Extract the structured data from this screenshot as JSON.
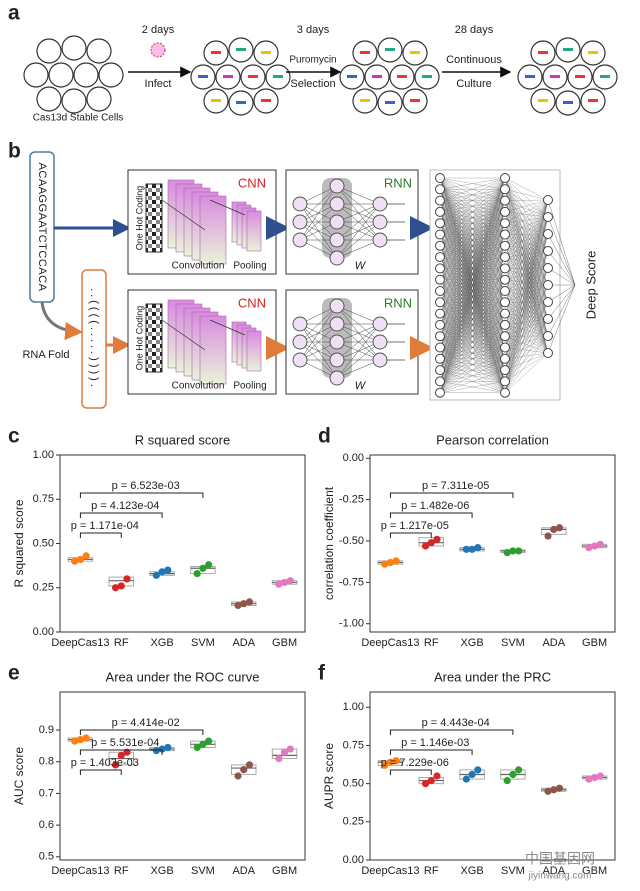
{
  "panel_a": {
    "letter": "a",
    "start": "Cas13d Stable Cells",
    "steps": [
      {
        "time": "2 days",
        "action": [
          "Infect"
        ]
      },
      {
        "time": "3 days",
        "action": [
          "Puromycin",
          "Selection"
        ]
      },
      {
        "time": "28 days",
        "action": [
          "Continuous",
          "Culture"
        ]
      }
    ]
  },
  "panel_b": {
    "letter": "b",
    "sequence": "ACAAGGAATCTCCACA",
    "structure": "..((((.....)))).",
    "fold_label": "RNA Fold",
    "output": "Deep Score",
    "branches": [
      {
        "encoding": "One Hot Coding",
        "cnn": "CNN",
        "convolution": "Convolution",
        "pooling": "Pooling",
        "rnn": "RNN",
        "weight": "W"
      },
      {
        "encoding": "One Hot Coding",
        "cnn": "CNN",
        "convolution": "Convolution",
        "pooling": "Pooling",
        "rnn": "RNN",
        "weight": "W"
      }
    ]
  },
  "chart_data": [
    {
      "type": "box",
      "label": "c",
      "title": "R squared score",
      "ylabel": "R squared score",
      "categories": [
        "DeepCas13",
        "RF",
        "XGB",
        "SVM",
        "ADA",
        "GBM"
      ],
      "ylim": [
        0,
        1
      ],
      "yticks": [
        {
          "value": 0,
          "label": "0.00"
        },
        {
          "value": 0.25,
          "label": "0.25"
        },
        {
          "value": 0.5,
          "label": "0.50"
        },
        {
          "value": 0.75,
          "label": "0.75"
        },
        {
          "value": 1,
          "label": "1.00"
        }
      ],
      "annotations": [
        "p = 1.171e-04",
        "p = 4.123e-04",
        "p = 6.523e-03"
      ],
      "boxes": [
        {
          "color": "#ff7f0e",
          "q1": 0.4,
          "median": 0.41,
          "q3": 0.42,
          "points": [
            0.4,
            0.41,
            0.43
          ]
        },
        {
          "color": "#d62728",
          "q1": 0.26,
          "median": 0.29,
          "q3": 0.31,
          "points": [
            0.25,
            0.26,
            0.3
          ]
        },
        {
          "color": "#1f77b4",
          "q1": 0.32,
          "median": 0.33,
          "q3": 0.34,
          "points": [
            0.32,
            0.34,
            0.35
          ]
        },
        {
          "color": "#2ca02c",
          "q1": 0.33,
          "median": 0.36,
          "q3": 0.37,
          "points": [
            0.33,
            0.36,
            0.38
          ]
        },
        {
          "color": "#8c564b",
          "q1": 0.15,
          "median": 0.16,
          "q3": 0.17,
          "points": [
            0.15,
            0.16,
            0.17
          ]
        },
        {
          "color": "#e377c2",
          "q1": 0.27,
          "median": 0.28,
          "q3": 0.29,
          "points": [
            0.27,
            0.28,
            0.29
          ]
        }
      ]
    },
    {
      "type": "box",
      "label": "d",
      "title": "Pearson correlation",
      "ylabel": "correlation coefficient",
      "categories": [
        "DeepCas13",
        "RF",
        "XGB",
        "SVM",
        "ADA",
        "GBM"
      ],
      "ylim": [
        -1.05,
        0.02
      ],
      "yticks": [
        {
          "value": 0,
          "label": "0.00"
        },
        {
          "value": -0.25,
          "label": "-0.25"
        },
        {
          "value": -0.5,
          "label": "-0.50"
        },
        {
          "value": -0.75,
          "label": "-0.75"
        },
        {
          "value": -1,
          "label": "-1.00"
        }
      ],
      "annotations": [
        "p = 1.217e-05",
        "p = 1.482e-06",
        "p = 7.311e-05"
      ],
      "boxes": [
        {
          "color": "#ff7f0e",
          "q1": -0.64,
          "median": -0.63,
          "q3": -0.62,
          "points": [
            -0.64,
            -0.63,
            -0.62
          ]
        },
        {
          "color": "#d62728",
          "q1": -0.53,
          "median": -0.51,
          "q3": -0.48,
          "points": [
            -0.53,
            -0.51,
            -0.49
          ]
        },
        {
          "color": "#1f77b4",
          "q1": -0.56,
          "median": -0.55,
          "q3": -0.54,
          "points": [
            -0.55,
            -0.55,
            -0.54
          ]
        },
        {
          "color": "#2ca02c",
          "q1": -0.57,
          "median": -0.56,
          "q3": -0.555,
          "points": [
            -0.57,
            -0.56,
            -0.56
          ]
        },
        {
          "color": "#8c564b",
          "q1": -0.46,
          "median": -0.43,
          "q3": -0.42,
          "points": [
            -0.47,
            -0.43,
            -0.42
          ]
        },
        {
          "color": "#e377c2",
          "q1": -0.54,
          "median": -0.53,
          "q3": -0.52,
          "points": [
            -0.54,
            -0.53,
            -0.52
          ]
        }
      ]
    },
    {
      "type": "box",
      "label": "e",
      "title": "Area under the ROC curve",
      "ylabel": "AUC score",
      "categories": [
        "DeepCas13",
        "RF",
        "XGB",
        "SVM",
        "ADA",
        "GBM"
      ],
      "ylim": [
        0.49,
        1.02
      ],
      "yticks": [
        0.5,
        0.6,
        0.7,
        0.8,
        0.9
      ],
      "annotations": [
        "p = 1.403e-03",
        "p = 5.531e-04",
        "p = 4.414e-02"
      ],
      "boxes": [
        {
          "color": "#ff7f0e",
          "q1": 0.865,
          "median": 0.87,
          "q3": 0.875,
          "points": [
            0.865,
            0.87,
            0.875
          ]
        },
        {
          "color": "#d62728",
          "q1": 0.79,
          "median": 0.81,
          "q3": 0.83,
          "points": [
            0.79,
            0.82,
            0.83
          ]
        },
        {
          "color": "#1f77b4",
          "q1": 0.835,
          "median": 0.84,
          "q3": 0.845,
          "points": [
            0.835,
            0.84,
            0.845
          ]
        },
        {
          "color": "#2ca02c",
          "q1": 0.845,
          "median": 0.855,
          "q3": 0.865,
          "points": [
            0.845,
            0.855,
            0.865
          ]
        },
        {
          "color": "#8c564b",
          "q1": 0.76,
          "median": 0.78,
          "q3": 0.79,
          "points": [
            0.755,
            0.775,
            0.79
          ]
        },
        {
          "color": "#e377c2",
          "q1": 0.81,
          "median": 0.82,
          "q3": 0.84,
          "points": [
            0.81,
            0.83,
            0.84
          ]
        }
      ]
    },
    {
      "type": "box",
      "label": "f",
      "title": "Area under the PRC",
      "ylabel": "AUPR score",
      "categories": [
        "DeepCas13",
        "RF",
        "XGB",
        "SVM",
        "ADA",
        "GBM"
      ],
      "ylim": [
        0,
        1.1
      ],
      "yticks": [
        {
          "value": 0,
          "label": "0.00"
        },
        {
          "value": 0.25,
          "label": "0.25"
        },
        {
          "value": 0.5,
          "label": "0.50"
        },
        {
          "value": 0.75,
          "label": "0.75"
        },
        {
          "value": 1,
          "label": "1.00"
        }
      ],
      "annotations": [
        "p = 7.229e-06",
        "p = 1.146e-03",
        "p = 4.443e-04"
      ],
      "boxes": [
        {
          "color": "#ff7f0e",
          "q1": 0.62,
          "median": 0.64,
          "q3": 0.65,
          "points": [
            0.62,
            0.64,
            0.65
          ]
        },
        {
          "color": "#d62728",
          "q1": 0.5,
          "median": 0.52,
          "q3": 0.54,
          "points": [
            0.5,
            0.52,
            0.55
          ]
        },
        {
          "color": "#1f77b4",
          "q1": 0.53,
          "median": 0.56,
          "q3": 0.59,
          "points": [
            0.53,
            0.56,
            0.59
          ]
        },
        {
          "color": "#2ca02c",
          "q1": 0.53,
          "median": 0.56,
          "q3": 0.59,
          "points": [
            0.52,
            0.56,
            0.59
          ]
        },
        {
          "color": "#8c564b",
          "q1": 0.45,
          "median": 0.46,
          "q3": 0.47,
          "points": [
            0.45,
            0.46,
            0.47
          ]
        },
        {
          "color": "#e377c2",
          "q1": 0.53,
          "median": 0.54,
          "q3": 0.55,
          "points": [
            0.53,
            0.54,
            0.55
          ]
        }
      ]
    }
  ],
  "watermark": {
    "name": "中国基因网",
    "site": "jiyinwang.com"
  }
}
